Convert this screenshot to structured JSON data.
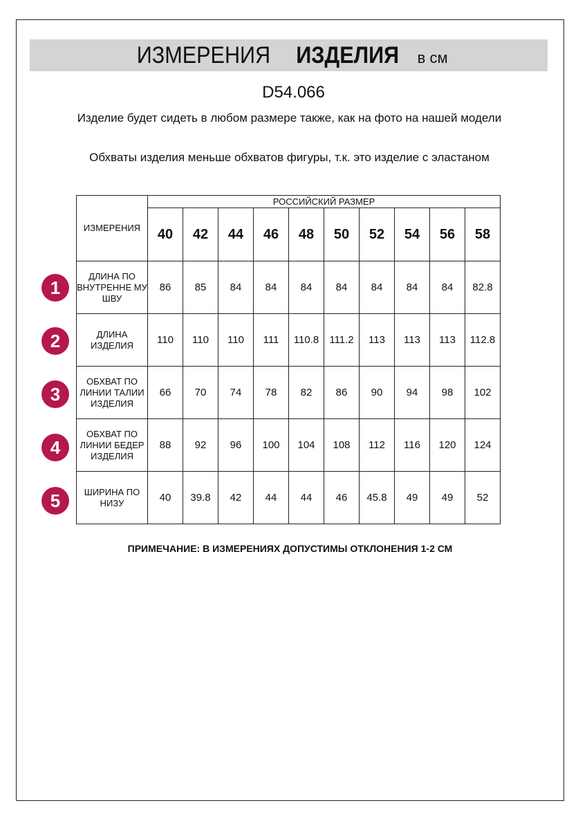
{
  "title": {
    "part1": "ИЗМЕРЕНИЯ",
    "part2": "ИЗДЕЛИЯ",
    "unit": "в см"
  },
  "code": "D54.066",
  "notes": [
    "Изделие будет сидеть в любом размере также, как на фото на нашей модели",
    "Обхваты изделия меньше обхватов фигуры, т.к. это изделие с эластаном"
  ],
  "table": {
    "corner": "ИЗМЕРЕНИЯ",
    "group_header": "РОССИЙСКИЙ РАЗМЕР",
    "sizes": [
      "40",
      "42",
      "44",
      "46",
      "48",
      "50",
      "52",
      "54",
      "56",
      "58"
    ],
    "rows": [
      {
        "num": "1",
        "label": "ДЛИНА ПО ВНУТРЕННЕ МУ ШВУ",
        "values": [
          "86",
          "85",
          "84",
          "84",
          "84",
          "84",
          "84",
          "84",
          "84",
          "82.8"
        ]
      },
      {
        "num": "2",
        "label": "ДЛИНА ИЗДЕЛИЯ",
        "values": [
          "110",
          "110",
          "110",
          "111",
          "110.8",
          "111.2",
          "113",
          "113",
          "113",
          "112.8"
        ]
      },
      {
        "num": "3",
        "label": "ОБХВАТ ПО ЛИНИИ ТАЛИИ ИЗДЕЛИЯ",
        "values": [
          "66",
          "70",
          "74",
          "78",
          "82",
          "86",
          "90",
          "94",
          "98",
          "102"
        ]
      },
      {
        "num": "4",
        "label": "ОБХВАТ ПО ЛИНИИ БЕДЕР ИЗДЕЛИЯ",
        "values": [
          "88",
          "92",
          "96",
          "100",
          "104",
          "108",
          "112",
          "116",
          "120",
          "124"
        ]
      },
      {
        "num": "5",
        "label": "ШИРИНА ПО НИЗУ",
        "values": [
          "40",
          "39.8",
          "42",
          "44",
          "44",
          "46",
          "45.8",
          "49",
          "49",
          "52"
        ]
      }
    ]
  },
  "footnote": "ПРИМЕЧАНИЕ: В ИЗМЕРЕНИЯХ ДОПУСТИМЫ ОТКЛОНЕНИЯ 1-2 СМ",
  "colors": {
    "badge": "#b5174f",
    "band": "#d4d4d4"
  }
}
